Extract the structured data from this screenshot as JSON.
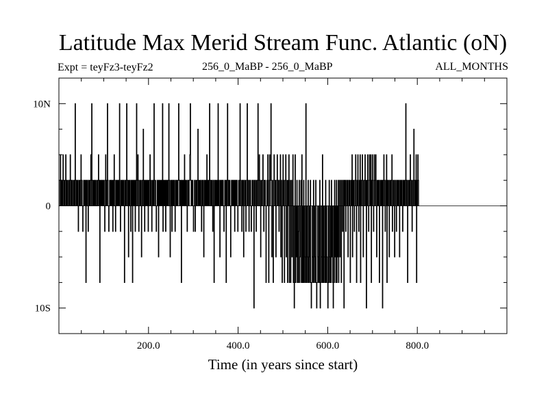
{
  "title": "Latitude Max Merid Stream Func. Atlantic (oN)",
  "subtitle_left": "Expt = teyFz3-teyFz2",
  "subtitle_center": "256_0_MaBP - 256_0_MaBP",
  "subtitle_right": "ALL_MONTHS",
  "chart_data": {
    "type": "line",
    "title": "Latitude Max Merid Stream Func. Atlantic (oN)",
    "xlabel": "Time (in years since start)",
    "ylabel": "",
    "xlim": [
      0,
      1000
    ],
    "ylim": [
      -12.5,
      12.5
    ],
    "x_ticks": [
      200,
      400,
      600,
      800
    ],
    "x_tick_labels": [
      "200.0",
      "400.0",
      "600.0",
      "800.0"
    ],
    "y_ticks": [
      -10,
      0,
      10
    ],
    "y_tick_labels": [
      "10S",
      "0",
      "10N"
    ],
    "levels": [
      -10,
      -7.5,
      -5,
      -2.5,
      0,
      2.5,
      5,
      7.5,
      10
    ],
    "series": [
      {
        "name": "latitude_max",
        "x_start": 1,
        "x_step": 1,
        "values": [
          0,
          2.5,
          5,
          0,
          2.5,
          0,
          2.5,
          0,
          5,
          2.5,
          0,
          2.5,
          0,
          2.5,
          5,
          0,
          2.5,
          0,
          2.5,
          0,
          0,
          2.5,
          0,
          2.5,
          5,
          0,
          2.5,
          0,
          2.5,
          0,
          0,
          2.5,
          0,
          2.5,
          0,
          10,
          2.5,
          0,
          2.5,
          0,
          2.5,
          0,
          -2.5,
          2.5,
          0,
          2.5,
          0,
          2.5,
          5,
          0,
          2.5,
          0,
          -2.5,
          0,
          2.5,
          0,
          2.5,
          0,
          2.5,
          -7.5,
          2.5,
          0,
          2.5,
          0,
          -2.5,
          2.5,
          0,
          2.5,
          0,
          2.5,
          5,
          0,
          10,
          2.5,
          0,
          2.5,
          0,
          2.5,
          0,
          2.5,
          0,
          2.5,
          0,
          0,
          2.5,
          0,
          2.5,
          5,
          0,
          2.5,
          -7.5,
          2.5,
          0,
          2.5,
          0,
          2.5,
          0,
          2.5,
          0,
          2.5,
          0,
          -2.5,
          2.5,
          5,
          0,
          2.5,
          0,
          10,
          2.5,
          0,
          -2.5,
          0,
          2.5,
          0,
          2.5,
          0,
          2.5,
          0,
          2.5,
          -2.5,
          2.5,
          0,
          5,
          2.5,
          0,
          -2.5,
          2.5,
          0,
          2.5,
          0,
          2.5,
          0,
          2.5,
          0,
          10,
          0,
          -2.5,
          2.5,
          0,
          2.5,
          0,
          2.5,
          0,
          2.5,
          0,
          -7.5,
          2.5,
          0,
          2.5,
          0,
          10,
          2.5,
          0,
          2.5,
          -5,
          2.5,
          0,
          2.5,
          0,
          -2.5,
          2.5,
          0,
          2.5,
          -7.5,
          2.5,
          0,
          2.5,
          0,
          2.5,
          -2.5,
          2.5,
          0,
          10,
          2.5,
          0,
          5,
          2.5,
          -2.5,
          0,
          2.5,
          0,
          2.5,
          0,
          -5,
          2.5,
          0,
          2.5,
          7.5,
          0,
          2.5,
          -2.5,
          2.5,
          0,
          2.5,
          0,
          2.5,
          0,
          2.5,
          -2.5,
          2.5,
          0,
          2.5,
          5,
          0,
          2.5,
          0,
          -2.5,
          2.5,
          0,
          2.5,
          0,
          10,
          2.5,
          0,
          2.5,
          0,
          -2.5,
          0,
          2.5,
          0,
          2.5,
          -5,
          2.5,
          0,
          2.5,
          0,
          2.5,
          0,
          2.5,
          0,
          10,
          -2.5,
          2.5,
          0,
          2.5,
          0,
          2.5,
          -2.5,
          2.5,
          0,
          2.5,
          0,
          2.5,
          0,
          10,
          2.5,
          0,
          -5,
          2.5,
          0,
          2.5,
          -2.5,
          2.5,
          0,
          2.5,
          0,
          2.5,
          0,
          -2.5,
          2.5,
          0,
          2.5,
          0,
          2.5,
          0,
          2.5,
          10,
          2.5,
          0,
          2.5,
          0,
          2.5,
          -7.5,
          2.5,
          0,
          2.5,
          0,
          2.5,
          0,
          5,
          0,
          2.5,
          0,
          2.5,
          0,
          -2.5,
          2.5,
          0,
          2.5,
          0,
          2.5,
          5,
          10,
          2.5,
          0,
          2.5,
          0,
          2.5,
          0,
          -2.5,
          0,
          2.5,
          0,
          -2.5,
          2.5,
          0,
          2.5,
          0,
          2.5,
          7.5,
          0,
          2.5,
          0,
          2.5,
          0,
          2.5,
          0,
          -2.5,
          2.5,
          0,
          2.5,
          0,
          -5,
          2.5,
          0,
          2.5,
          0,
          2.5,
          0,
          5,
          0,
          2.5,
          0,
          2.5,
          0,
          10,
          2.5,
          0,
          2.5,
          0,
          2.5,
          0,
          -2.5,
          2.5,
          0,
          -7.5,
          2.5,
          0,
          2.5,
          0,
          2.5,
          0,
          2.5,
          0,
          10,
          0,
          2.5,
          0,
          -5,
          2.5,
          0,
          2.5,
          0,
          2.5,
          0,
          2.5,
          0,
          -2.5,
          0,
          2.5,
          0,
          2.5,
          -7.5,
          2.5,
          0,
          10,
          2.5,
          0,
          2.5,
          0,
          2.5,
          0,
          -5,
          0,
          2.5,
          0,
          2.5,
          0,
          2.5,
          0,
          2.5,
          -2.5,
          2.5,
          0,
          2.5,
          0,
          2.5,
          0,
          -2.5,
          0,
          2.5,
          0,
          2.5,
          10,
          0,
          2.5,
          0,
          -2.5,
          2.5,
          0,
          2.5,
          -5,
          0,
          2.5,
          0,
          2.5,
          -2.5,
          0,
          2.5,
          10,
          0,
          2.5,
          0,
          -2.5,
          2.5,
          0,
          2.5,
          0,
          -2.5,
          0,
          2.5,
          0,
          2.5,
          0,
          -10,
          2.5,
          0,
          2.5,
          0,
          -2.5,
          2.5,
          0,
          2.5,
          10,
          0,
          2.5,
          5,
          0,
          2.5,
          -5,
          0,
          2.5,
          0,
          2.5,
          5,
          0,
          -2.5,
          2.5,
          0,
          2.5,
          0,
          -7.5,
          0,
          2.5,
          0,
          5,
          0,
          -7.5,
          2.5,
          5,
          0,
          2.5,
          10,
          2.5,
          -5,
          0,
          2.5,
          -7.5,
          0,
          5,
          2.5,
          0,
          2.5,
          -5,
          0,
          2.5,
          5,
          0,
          2.5,
          0,
          -2.5,
          2.5,
          0,
          5,
          -5,
          0,
          2.5,
          -7.5,
          0,
          5,
          0,
          2.5,
          -7.5,
          0,
          2.5,
          5,
          -5,
          0,
          2.5,
          -7.5,
          2.5,
          0,
          5,
          -7.5,
          0,
          2.5,
          -7.5,
          0,
          2.5,
          -5,
          0,
          5,
          -7.5,
          0,
          -10,
          -7.5,
          5,
          -7.5,
          0,
          -5,
          2.5,
          -7.5,
          0,
          -7.5,
          -2.5,
          2.5,
          -7.5,
          -5,
          0,
          2.5,
          -7.5,
          5,
          -7.5,
          0,
          -7.5,
          2.5,
          -7.5,
          0,
          -5,
          -7.5,
          10,
          -7.5,
          0,
          -5,
          -7.5,
          2.5,
          -7.5,
          -5,
          0,
          -7.5,
          2.5,
          -7.5,
          -10,
          -7.5,
          0,
          -5,
          -7.5,
          2.5,
          -7.5,
          0,
          -5,
          -7.5,
          2.5,
          -7.5,
          -10,
          -7.5,
          0,
          -5,
          -7.5,
          0,
          -7.5,
          2.5,
          -10,
          -7.5,
          0,
          -5,
          -7.5,
          5,
          -7.5,
          0,
          -7.5,
          -5,
          0,
          -7.5,
          2.5,
          -7.5,
          0,
          -5,
          -7.5,
          -10,
          0,
          -7.5,
          2.5,
          -5,
          -7.5,
          0,
          -7.5,
          2.5,
          -5,
          0,
          -7.5,
          -10,
          0,
          -7.5,
          2.5,
          -5,
          0,
          -7.5,
          2.5,
          -7.5,
          0,
          -5,
          2.5,
          -7.5,
          0,
          2.5,
          -5,
          0,
          2.5,
          -7.5,
          0,
          2.5,
          -2.5,
          0,
          2.5,
          -10,
          2.5,
          0,
          2.5,
          -2.5,
          0,
          2.5,
          0,
          2.5,
          -5,
          0,
          2.5,
          0,
          2.5,
          -7.5,
          0,
          2.5,
          0,
          5,
          -5,
          2.5,
          0,
          2.5,
          -2.5,
          0,
          2.5,
          5,
          0,
          -7.5,
          2.5,
          0,
          5,
          0,
          -2.5,
          2.5,
          0,
          5,
          -7.5,
          2.5,
          0,
          2.5,
          5,
          0,
          -5,
          2.5,
          0,
          2.5,
          5,
          0,
          2.5,
          -10,
          2.5,
          0,
          5,
          2.5,
          -2.5,
          0,
          5,
          2.5,
          0,
          5,
          -7.5,
          2.5,
          0,
          5,
          2.5,
          -2.5,
          0,
          5,
          2.5,
          0,
          5,
          0,
          -5,
          2.5,
          0,
          2.5,
          0,
          2.5,
          -7.5,
          0,
          2.5,
          0,
          2.5,
          0,
          2.5,
          -10,
          2.5,
          0,
          5,
          2.5,
          0,
          -2.5,
          2.5,
          0,
          5,
          -7.5,
          2.5,
          0,
          2.5,
          0,
          -5,
          2.5,
          0,
          2.5,
          0,
          2.5,
          5,
          -2.5,
          0,
          2.5,
          0,
          2.5,
          -5,
          0,
          2.5,
          0,
          -2.5,
          2.5,
          0,
          2.5,
          0,
          2.5,
          0,
          -5,
          2.5,
          0,
          2.5,
          0,
          2.5,
          0,
          -2.5,
          2.5,
          0,
          2.5,
          0,
          2.5,
          0,
          10,
          2.5,
          0,
          2.5,
          -7.5,
          0,
          2.5,
          0,
          2.5,
          0,
          5,
          2.5,
          0,
          2.5,
          -2.5,
          0,
          2.5,
          0,
          7.5,
          2.5,
          0,
          2.5,
          0,
          5,
          -7.5,
          2.5,
          0,
          5,
          2.5,
          0
        ]
      }
    ]
  }
}
